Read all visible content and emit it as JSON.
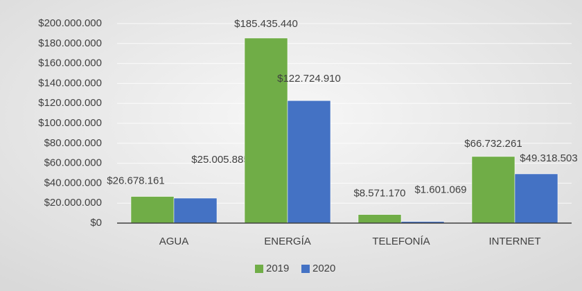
{
  "chart_data": {
    "type": "bar",
    "categories": [
      "AGUA",
      "ENERGÍA",
      "TELEFONÍA",
      "INTERNET"
    ],
    "series": [
      {
        "name": "2019",
        "color": "#70ad47",
        "values": [
          26678161,
          185435440,
          8571170,
          66732261
        ],
        "value_labels": [
          "$26.678.161",
          "$185.435.440",
          "$8.571.170",
          "$66.732.261"
        ]
      },
      {
        "name": "2020",
        "color": "#4472c4",
        "values": [
          25005885,
          122724910,
          1601069,
          49318503
        ],
        "value_labels": [
          "$25.005.885",
          "$122.724.910",
          "$1.601.069",
          "$49.318.503"
        ]
      }
    ],
    "ylim": [
      0,
      200000000
    ],
    "yticks": [
      {
        "value": 0,
        "label": "$0"
      },
      {
        "value": 20000000,
        "label": "$20.000.000"
      },
      {
        "value": 40000000,
        "label": "$40.000.000"
      },
      {
        "value": 60000000,
        "label": "$60.000.000"
      },
      {
        "value": 80000000,
        "label": "$80.000.000"
      },
      {
        "value": 100000000,
        "label": "$100.000.000"
      },
      {
        "value": 120000000,
        "label": "$120.000.000"
      },
      {
        "value": 140000000,
        "label": "$140.000.000"
      },
      {
        "value": 160000000,
        "label": "$160.000.000"
      },
      {
        "value": 180000000,
        "label": "$180.000.000"
      },
      {
        "value": 200000000,
        "label": "$200.000.000"
      }
    ],
    "grid": true,
    "legend": "bottom"
  }
}
